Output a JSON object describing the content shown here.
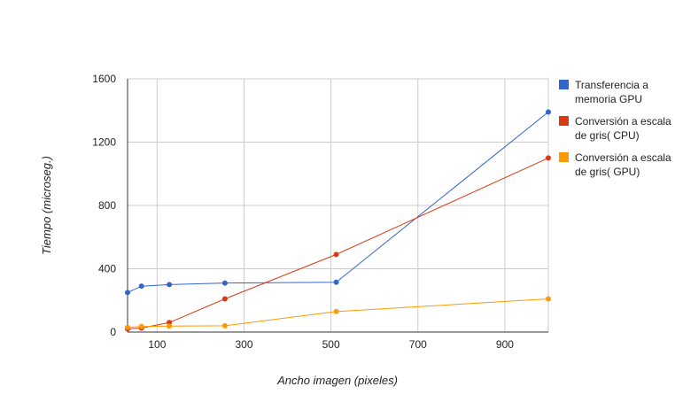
{
  "chart_data": {
    "type": "line",
    "xlabel": "Ancho imagen (pixeles)",
    "ylabel": "Tiempo (microseg.)",
    "xlim": [
      32,
      1000
    ],
    "ylim": [
      0,
      1600
    ],
    "x_ticks": [
      100,
      300,
      500,
      700,
      900
    ],
    "y_ticks": [
      0,
      400,
      800,
      1200,
      1600
    ],
    "x_tick_labels": [
      "100",
      "300",
      "500",
      "700",
      "900"
    ],
    "y_tick_labels": [
      "0",
      "400",
      "800",
      "1200",
      "1600"
    ],
    "grid": true,
    "legend_position": "right",
    "series": [
      {
        "name": "Transferencia a memoria GPU",
        "color": "#3366cc",
        "points": [
          [
            32,
            250
          ],
          [
            64,
            290
          ],
          [
            128,
            300
          ],
          [
            256,
            310
          ],
          [
            512,
            315
          ],
          [
            1000,
            1390
          ]
        ]
      },
      {
        "name": "Conversión a escala de gris( CPU)",
        "color": "#dc3912",
        "points": [
          [
            32,
            20
          ],
          [
            64,
            25
          ],
          [
            128,
            60
          ],
          [
            256,
            210
          ],
          [
            512,
            490
          ],
          [
            1000,
            1100
          ]
        ]
      },
      {
        "name": "Conversión a escala de gris( GPU)",
        "color": "#ff9900",
        "points": [
          [
            32,
            30
          ],
          [
            64,
            35
          ],
          [
            128,
            38
          ],
          [
            256,
            40
          ],
          [
            512,
            130
          ],
          [
            1000,
            210
          ]
        ]
      }
    ]
  }
}
